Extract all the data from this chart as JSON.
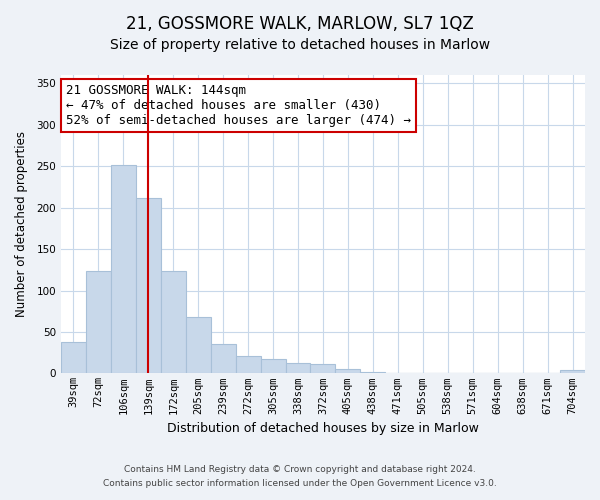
{
  "title": "21, GOSSMORE WALK, MARLOW, SL7 1QZ",
  "subtitle": "Size of property relative to detached houses in Marlow",
  "xlabel": "Distribution of detached houses by size in Marlow",
  "ylabel": "Number of detached properties",
  "categories": [
    "39sqm",
    "72sqm",
    "106sqm",
    "139sqm",
    "172sqm",
    "205sqm",
    "239sqm",
    "272sqm",
    "305sqm",
    "338sqm",
    "372sqm",
    "405sqm",
    "438sqm",
    "471sqm",
    "505sqm",
    "538sqm",
    "571sqm",
    "604sqm",
    "638sqm",
    "671sqm",
    "704sqm"
  ],
  "values": [
    38,
    124,
    252,
    211,
    124,
    68,
    35,
    21,
    17,
    13,
    11,
    5,
    2,
    0,
    0,
    0,
    0,
    0,
    0,
    0,
    4
  ],
  "bar_color": "#c8d8ea",
  "bar_edge_color": "#a8c0d8",
  "vline_x_index": 3,
  "vline_color": "#cc0000",
  "annotation_line1": "21 GOSSMORE WALK: 144sqm",
  "annotation_line2": "← 47% of detached houses are smaller (430)",
  "annotation_line3": "52% of semi-detached houses are larger (474) →",
  "annotation_box_color": "#ffffff",
  "annotation_box_edge_color": "#cc0000",
  "ylim": [
    0,
    360
  ],
  "yticks": [
    0,
    50,
    100,
    150,
    200,
    250,
    300,
    350
  ],
  "footer_line1": "Contains HM Land Registry data © Crown copyright and database right 2024.",
  "footer_line2": "Contains public sector information licensed under the Open Government Licence v3.0.",
  "background_color": "#eef2f7",
  "plot_background_color": "#ffffff",
  "grid_color": "#c8d8ea",
  "title_fontsize": 12,
  "subtitle_fontsize": 10,
  "xlabel_fontsize": 9,
  "ylabel_fontsize": 8.5,
  "tick_fontsize": 7.5,
  "annotation_fontsize": 9,
  "footer_fontsize": 6.5
}
